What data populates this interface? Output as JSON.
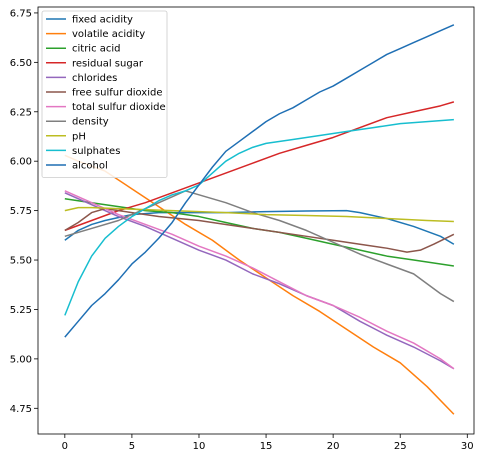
{
  "chart_data": {
    "type": "line",
    "title": "",
    "xlabel": "",
    "ylabel": "",
    "xlim": [
      -2,
      30.5
    ],
    "ylim": [
      4.62,
      6.78
    ],
    "xticks": [
      0,
      5,
      10,
      15,
      20,
      25,
      30
    ],
    "yticks": [
      4.75,
      5.0,
      5.25,
      5.5,
      5.75,
      6.0,
      6.25,
      6.5,
      6.75
    ],
    "xtick_labels": [
      "0",
      "5",
      "10",
      "15",
      "20",
      "25",
      "30"
    ],
    "ytick_labels": [
      "4.75",
      "5.00",
      "5.25",
      "5.50",
      "5.75",
      "6.00",
      "6.25",
      "6.50",
      "6.75"
    ],
    "grid": false,
    "legend_position": "upper-left",
    "series": [
      {
        "name": "fixed acidity",
        "color": "#1f77b4",
        "points": [
          [
            0,
            5.6
          ],
          [
            1,
            5.65
          ],
          [
            2,
            5.68
          ],
          [
            3,
            5.7
          ],
          [
            5,
            5.73
          ],
          [
            7,
            5.74
          ],
          [
            10,
            5.74
          ],
          [
            12,
            5.74
          ],
          [
            15,
            5.745
          ],
          [
            18,
            5.748
          ],
          [
            21,
            5.75
          ],
          [
            22,
            5.74
          ],
          [
            24,
            5.71
          ],
          [
            26,
            5.67
          ],
          [
            28,
            5.62
          ],
          [
            29,
            5.58
          ]
        ]
      },
      {
        "name": "volatile acidity",
        "color": "#ff7f0e",
        "points": [
          [
            0,
            6.03
          ],
          [
            1,
            6.0
          ],
          [
            3,
            5.95
          ],
          [
            5,
            5.86
          ],
          [
            7,
            5.77
          ],
          [
            9,
            5.68
          ],
          [
            11,
            5.6
          ],
          [
            13,
            5.5
          ],
          [
            15,
            5.41
          ],
          [
            17,
            5.32
          ],
          [
            19,
            5.24
          ],
          [
            21,
            5.15
          ],
          [
            23,
            5.06
          ],
          [
            25,
            4.98
          ],
          [
            27,
            4.86
          ],
          [
            29,
            4.72
          ]
        ]
      },
      {
        "name": "citric acid",
        "color": "#2ca02c",
        "points": [
          [
            0,
            5.81
          ],
          [
            2,
            5.79
          ],
          [
            4,
            5.77
          ],
          [
            6,
            5.75
          ],
          [
            8,
            5.74
          ],
          [
            10,
            5.72
          ],
          [
            12,
            5.69
          ],
          [
            14,
            5.66
          ],
          [
            16,
            5.64
          ],
          [
            18,
            5.61
          ],
          [
            20,
            5.58
          ],
          [
            22,
            5.55
          ],
          [
            24,
            5.52
          ],
          [
            26,
            5.5
          ],
          [
            28,
            5.48
          ],
          [
            29,
            5.47
          ]
        ]
      },
      {
        "name": "residual sugar",
        "color": "#d62728",
        "points": [
          [
            0,
            5.65
          ],
          [
            2,
            5.7
          ],
          [
            4,
            5.75
          ],
          [
            6,
            5.79
          ],
          [
            8,
            5.84
          ],
          [
            10,
            5.89
          ],
          [
            12,
            5.94
          ],
          [
            14,
            5.99
          ],
          [
            16,
            6.04
          ],
          [
            18,
            6.08
          ],
          [
            20,
            6.12
          ],
          [
            22,
            6.17
          ],
          [
            24,
            6.22
          ],
          [
            26,
            6.25
          ],
          [
            28,
            6.28
          ],
          [
            29,
            6.3
          ]
        ]
      },
      {
        "name": "chlorides",
        "color": "#9467bd",
        "points": [
          [
            0,
            5.84
          ],
          [
            2,
            5.78
          ],
          [
            4,
            5.72
          ],
          [
            6,
            5.67
          ],
          [
            8,
            5.61
          ],
          [
            10,
            5.55
          ],
          [
            12,
            5.5
          ],
          [
            14,
            5.43
          ],
          [
            16,
            5.38
          ],
          [
            18,
            5.32
          ],
          [
            20,
            5.27
          ],
          [
            22,
            5.19
          ],
          [
            24,
            5.12
          ],
          [
            26,
            5.06
          ],
          [
            28,
            4.99
          ],
          [
            29,
            4.95
          ]
        ]
      },
      {
        "name": "free sulfur dioxide",
        "color": "#8c564b",
        "points": [
          [
            0,
            5.65
          ],
          [
            1,
            5.69
          ],
          [
            2,
            5.74
          ],
          [
            3,
            5.76
          ],
          [
            5,
            5.74
          ],
          [
            7,
            5.72
          ],
          [
            10,
            5.7
          ],
          [
            12,
            5.68
          ],
          [
            15,
            5.65
          ],
          [
            18,
            5.62
          ],
          [
            20,
            5.6
          ],
          [
            22,
            5.58
          ],
          [
            24,
            5.56
          ],
          [
            25.5,
            5.54
          ],
          [
            26.5,
            5.55
          ],
          [
            27.5,
            5.58
          ],
          [
            29,
            5.63
          ]
        ]
      },
      {
        "name": "total sulfur dioxide",
        "color": "#e377c2",
        "points": [
          [
            0,
            5.85
          ],
          [
            2,
            5.79
          ],
          [
            4,
            5.73
          ],
          [
            6,
            5.68
          ],
          [
            8,
            5.63
          ],
          [
            10,
            5.57
          ],
          [
            12,
            5.52
          ],
          [
            14,
            5.46
          ],
          [
            16,
            5.39
          ],
          [
            18,
            5.32
          ],
          [
            20,
            5.27
          ],
          [
            22,
            5.21
          ],
          [
            24,
            5.14
          ],
          [
            26,
            5.08
          ],
          [
            28,
            5.0
          ],
          [
            29,
            4.95
          ]
        ]
      },
      {
        "name": "density",
        "color": "#7f7f7f",
        "points": [
          [
            0,
            5.62
          ],
          [
            2,
            5.66
          ],
          [
            4,
            5.7
          ],
          [
            6,
            5.76
          ],
          [
            8,
            5.82
          ],
          [
            9,
            5.85
          ],
          [
            10,
            5.83
          ],
          [
            12,
            5.79
          ],
          [
            14,
            5.74
          ],
          [
            16,
            5.7
          ],
          [
            18,
            5.65
          ],
          [
            20,
            5.59
          ],
          [
            22,
            5.53
          ],
          [
            24,
            5.48
          ],
          [
            26,
            5.43
          ],
          [
            28,
            5.33
          ],
          [
            29,
            5.29
          ]
        ]
      },
      {
        "name": "pH",
        "color": "#bcbd22",
        "points": [
          [
            0,
            5.75
          ],
          [
            1,
            5.765
          ],
          [
            2,
            5.765
          ],
          [
            4,
            5.76
          ],
          [
            6,
            5.755
          ],
          [
            8,
            5.75
          ],
          [
            10,
            5.745
          ],
          [
            12,
            5.74
          ],
          [
            15,
            5.73
          ],
          [
            18,
            5.725
          ],
          [
            21,
            5.72
          ],
          [
            24,
            5.71
          ],
          [
            27,
            5.7
          ],
          [
            29,
            5.695
          ]
        ]
      },
      {
        "name": "sulphates",
        "color": "#17becf",
        "points": [
          [
            0,
            5.22
          ],
          [
            1,
            5.39
          ],
          [
            2,
            5.52
          ],
          [
            3,
            5.61
          ],
          [
            4,
            5.67
          ],
          [
            5,
            5.72
          ],
          [
            6,
            5.76
          ],
          [
            7,
            5.8
          ],
          [
            8,
            5.83
          ],
          [
            9,
            5.85
          ],
          [
            10,
            5.88
          ],
          [
            11,
            5.94
          ],
          [
            12,
            6.0
          ],
          [
            13,
            6.04
          ],
          [
            14,
            6.07
          ],
          [
            15,
            6.09
          ],
          [
            17,
            6.11
          ],
          [
            19,
            6.13
          ],
          [
            21,
            6.15
          ],
          [
            23,
            6.17
          ],
          [
            25,
            6.19
          ],
          [
            27,
            6.2
          ],
          [
            29,
            6.21
          ]
        ]
      },
      {
        "name": "alcohol",
        "color": "#1f6fb4",
        "points": [
          [
            0,
            5.11
          ],
          [
            1,
            5.19
          ],
          [
            2,
            5.27
          ],
          [
            3,
            5.33
          ],
          [
            4,
            5.4
          ],
          [
            5,
            5.48
          ],
          [
            6,
            5.54
          ],
          [
            7,
            5.61
          ],
          [
            8,
            5.69
          ],
          [
            9,
            5.79
          ],
          [
            10,
            5.88
          ],
          [
            11,
            5.97
          ],
          [
            12,
            6.05
          ],
          [
            13,
            6.1
          ],
          [
            14,
            6.15
          ],
          [
            15,
            6.2
          ],
          [
            16,
            6.24
          ],
          [
            17,
            6.27
          ],
          [
            18,
            6.31
          ],
          [
            19,
            6.35
          ],
          [
            20,
            6.38
          ],
          [
            21,
            6.42
          ],
          [
            22,
            6.46
          ],
          [
            23,
            6.5
          ],
          [
            24,
            6.54
          ],
          [
            25,
            6.57
          ],
          [
            26,
            6.6
          ],
          [
            27,
            6.63
          ],
          [
            28,
            6.66
          ],
          [
            29,
            6.69
          ]
        ]
      }
    ]
  }
}
